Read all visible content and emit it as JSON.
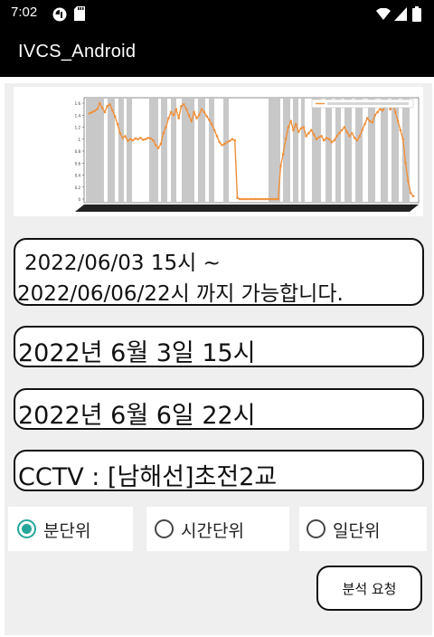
{
  "status_bar": {
    "time": "7:02",
    "icons": [
      "app-notification-icon",
      "sd-card-icon",
      "wifi-icon",
      "signal-icon",
      "battery-icon"
    ]
  },
  "app_bar": {
    "title": "IVCS_Android"
  },
  "availability": {
    "line1": "2022/06/03 15시 ~",
    "line2": "2022/06/06/22시 까지 가능합니다."
  },
  "start_time": "2022년 6월 3일 15시",
  "end_time": "2022년 6월 6일 22시",
  "cctv": "CCTV : [남해선]초전2교",
  "units": {
    "selected": "minute",
    "minute": "분단위",
    "hour": "시간단위",
    "day": "일단위"
  },
  "analyze_button": "분석 요청",
  "colors": {
    "accent": "#26a69a",
    "line": "#f0903a",
    "bars": "#9a9a9a"
  },
  "chart_data": {
    "type": "line",
    "title": "",
    "series": [
      {
        "values": [
          1.43,
          1.45,
          1.47,
          1.5,
          1.6,
          1.52,
          1.45,
          1.55,
          1.58,
          1.48,
          1.38,
          1.25,
          1.1,
          1.02,
          1.05,
          0.97,
          1.0,
          0.98,
          1.01,
          1.0,
          1.02,
          0.99,
          1.0,
          1.02,
          1.01,
          0.98,
          0.9,
          0.85,
          0.92,
          1.1,
          1.2,
          1.35,
          1.45,
          1.4,
          1.5,
          1.35,
          1.55,
          1.58,
          1.5,
          1.4,
          1.3,
          1.45,
          1.35,
          1.4,
          1.5,
          1.45,
          1.38,
          1.32,
          1.25,
          1.15,
          1.05,
          0.95,
          0.9,
          0.92,
          0.95,
          0.97,
          1.0,
          0.98,
          0.02,
          0.0,
          0.0,
          0.0,
          0.0,
          0.0,
          0.0,
          0.0,
          0.0,
          0.0,
          0.0,
          0.0,
          0.0,
          0.0,
          0.0,
          0.0,
          0.0,
          0.55,
          0.75,
          1.0,
          1.2,
          1.3,
          1.15,
          1.25,
          1.12,
          1.18,
          1.2,
          1.05,
          1.1,
          1.15,
          1.08,
          1.0,
          1.03,
          1.05,
          0.98,
          1.02,
          1.0,
          0.95,
          0.98,
          1.05,
          1.1,
          1.15,
          1.2,
          1.12,
          1.05,
          1.1,
          1.02,
          0.98,
          1.05,
          1.15,
          1.25,
          1.35,
          1.3,
          1.28,
          1.4,
          1.45,
          1.5,
          1.48,
          1.55,
          1.6,
          1.5,
          1.58,
          1.45,
          1.3,
          1.15,
          1.0,
          0.6,
          0.3,
          0.1,
          0.05
        ]
      }
    ],
    "ylim": [
      0,
      1.6
    ],
    "yticks": [
      0,
      0.2,
      0.4,
      0.6,
      0.8,
      1.0,
      1.2,
      1.4,
      1.6
    ],
    "grid": true
  }
}
